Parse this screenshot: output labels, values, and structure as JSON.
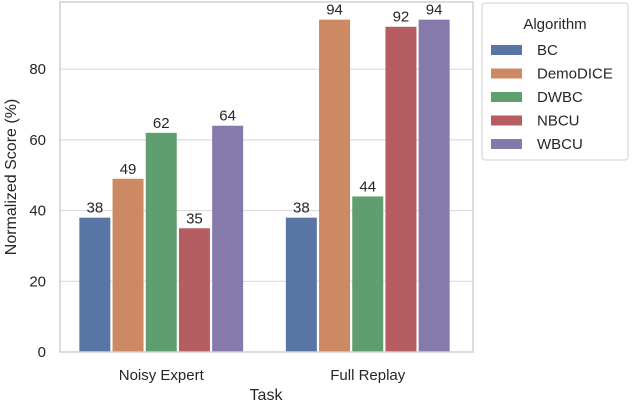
{
  "chart_data": {
    "type": "bar",
    "title": "",
    "xlabel": "Task",
    "ylabel": "Normalized Score (%)",
    "categories": [
      "Noisy Expert",
      "Full Replay"
    ],
    "series": [
      {
        "name": "BC",
        "color": "#5875a4",
        "values": [
          38,
          38
        ]
      },
      {
        "name": "DemoDICE",
        "color": "#cc8963",
        "values": [
          49,
          94
        ]
      },
      {
        "name": "DWBC",
        "color": "#5f9e6e",
        "values": [
          62,
          44
        ]
      },
      {
        "name": "NBCU",
        "color": "#b55d60",
        "values": [
          35,
          92
        ]
      },
      {
        "name": "WBCU",
        "color": "#857aab",
        "values": [
          64,
          94
        ]
      }
    ],
    "ylim": [
      0,
      99
    ],
    "yticks": [
      0,
      20,
      40,
      60,
      80
    ],
    "grid": true,
    "legend": {
      "title": "Algorithm",
      "position": "outside-right-top"
    },
    "data_labels": true
  }
}
